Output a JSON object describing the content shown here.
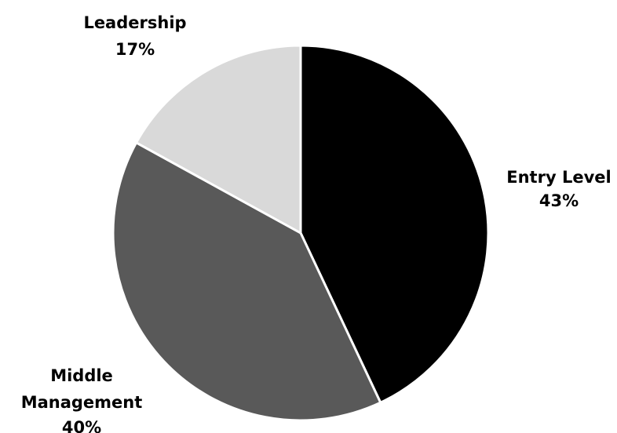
{
  "chart_data": {
    "type": "pie",
    "title": "",
    "slices": [
      {
        "label": "Entry Level",
        "value": 43,
        "value_label": "43%",
        "color": "#000000"
      },
      {
        "label": "Middle Management",
        "value": 40,
        "value_label": "40%",
        "color": "#595959"
      },
      {
        "label": "Leadership",
        "value": 17,
        "value_label": "17%",
        "color": "#d9d9d9"
      }
    ],
    "start_angle": "12 o'clock",
    "direction": "clockwise",
    "legend": "none",
    "slice_border_color": "#ffffff"
  }
}
